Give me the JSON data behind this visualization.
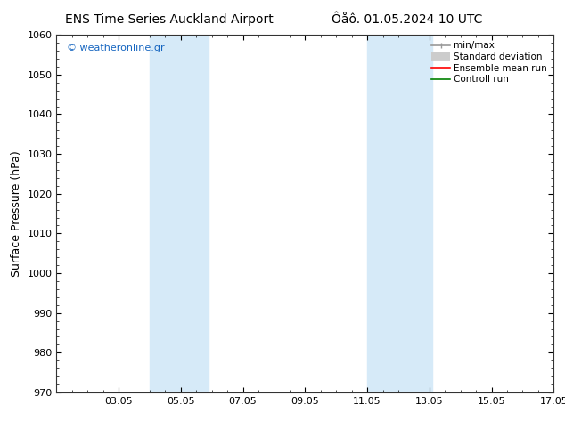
{
  "title_left": "ENS Time Series Auckland Airport",
  "title_right": "Ôåô. 01.05.2024 10 UTC",
  "ylabel": "Surface Pressure (hPa)",
  "ylim": [
    970,
    1060
  ],
  "yticks": [
    970,
    980,
    990,
    1000,
    1010,
    1020,
    1030,
    1040,
    1050,
    1060
  ],
  "xlim": [
    1,
    17
  ],
  "xtick_labels": [
    "03.05",
    "05.05",
    "07.05",
    "09.05",
    "11.05",
    "13.05",
    "15.05",
    "17.05"
  ],
  "xtick_positions": [
    3,
    5,
    7,
    9,
    11,
    13,
    15,
    17
  ],
  "shaded_bands": [
    {
      "x_start": 4.0,
      "x_end": 5.9
    },
    {
      "x_start": 11.0,
      "x_end": 13.1
    }
  ],
  "shaded_color": "#d6eaf8",
  "background_color": "#ffffff",
  "watermark_text": "© weatheronline.gr",
  "watermark_color": "#1565c0",
  "legend_labels": [
    "min/max",
    "Standard deviation",
    "Ensemble mean run",
    "Controll run"
  ],
  "legend_colors": [
    "#999999",
    "#cccccc",
    "#ff0000",
    "#008000"
  ],
  "title_fontsize": 10,
  "tick_fontsize": 8,
  "ylabel_fontsize": 9,
  "legend_fontsize": 7.5
}
